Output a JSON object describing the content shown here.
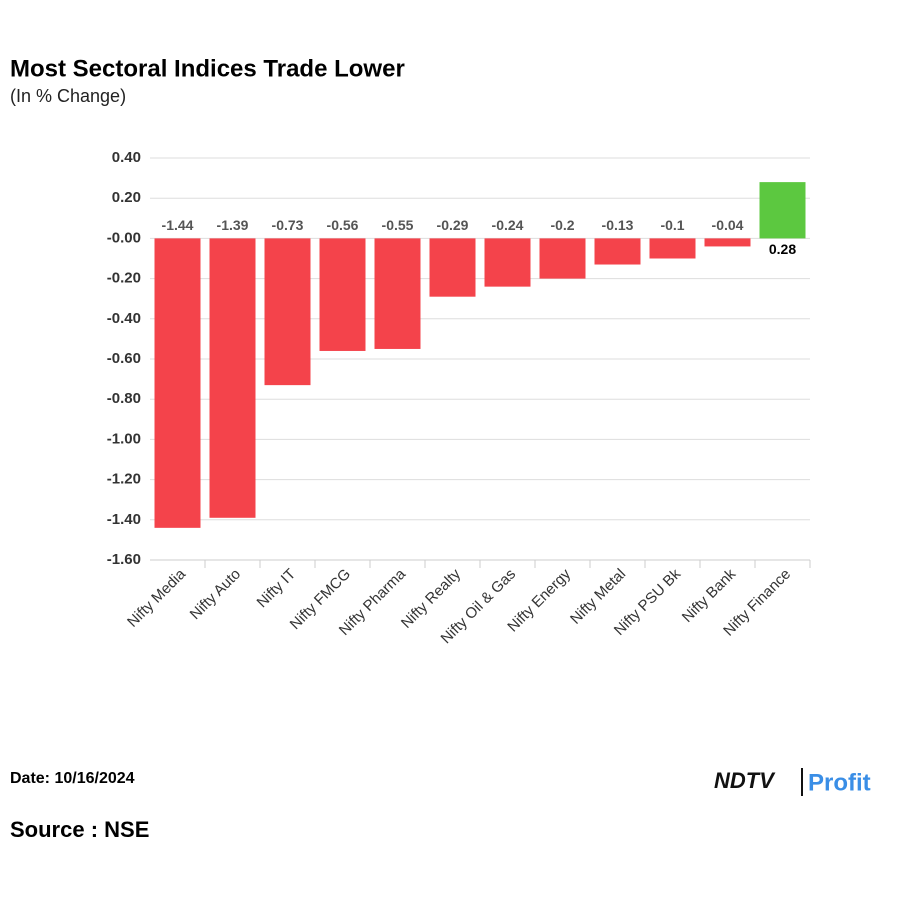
{
  "chart_data": {
    "type": "bar",
    "title": "Most Sectoral Indices Trade Lower",
    "subtitle": "(In % Change)",
    "categories": [
      "Nifty Media",
      "Nifty Auto",
      "Nifty IT",
      "Nifty FMCG",
      "Nifty Pharma",
      "Nifty Realty",
      "Nifty Oil & Gas",
      "Nifty Energy",
      "Nifty Metal",
      "Nifty PSU Bk",
      "Nifty Bank",
      "Nifty Finance"
    ],
    "values": [
      -1.44,
      -1.39,
      -0.73,
      -0.56,
      -0.55,
      -0.29,
      -0.24,
      -0.2,
      -0.13,
      -0.1,
      -0.04,
      0.28
    ],
    "colors": [
      "#f4434b",
      "#f4434b",
      "#f4434b",
      "#f4434b",
      "#f4434b",
      "#f4434b",
      "#f4434b",
      "#f4434b",
      "#f4434b",
      "#f4434b",
      "#f4434b",
      "#5cc840"
    ],
    "ylim": [
      -1.6,
      0.4
    ],
    "yticks": [
      {
        "value": 0.4,
        "label": "0.40"
      },
      {
        "value": 0.2,
        "label": "0.20"
      },
      {
        "value": 0,
        "label": "-0.00"
      },
      {
        "value": -0.2,
        "label": "-0.20"
      },
      {
        "value": -0.4,
        "label": "-0.40"
      },
      {
        "value": -0.6,
        "label": "-0.60"
      },
      {
        "value": -0.8,
        "label": "-0.80"
      },
      {
        "value": -1,
        "label": "-1.00"
      },
      {
        "value": -1.2,
        "label": "-1.20"
      },
      {
        "value": -1.4,
        "label": "-1.40"
      },
      {
        "value": -1.6,
        "label": "-1.60"
      }
    ],
    "grid": true
  },
  "footer": {
    "date": "Date: 10/16/2024",
    "source": "Source : NSE",
    "brand_ndtv": "NDTV",
    "brand_profit": "Profit"
  }
}
